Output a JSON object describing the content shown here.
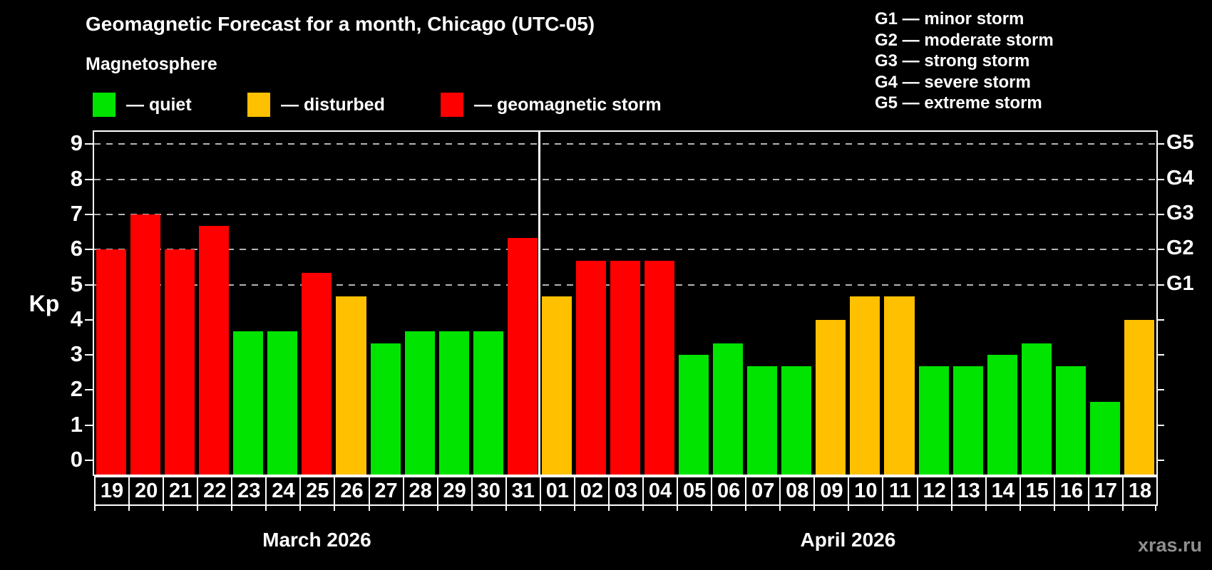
{
  "title": "Geomagnetic Forecast for a month, Chicago (UTC-05)",
  "legend": {
    "heading": "Magnetosphere",
    "items": [
      {
        "label": "— quiet",
        "status": "quiet",
        "color": "#00e400"
      },
      {
        "label": "— disturbed",
        "status": "disturbed",
        "color": "#ffc000"
      },
      {
        "label": "— geomagnetic storm",
        "status": "storm",
        "color": "#ff0000"
      }
    ]
  },
  "g_legend": {
    "items": [
      {
        "label": "G1 — minor storm"
      },
      {
        "label": "G2 — moderate storm"
      },
      {
        "label": "G3 — strong storm"
      },
      {
        "label": "G4 — severe storm"
      },
      {
        "label": "G5 — extreme storm"
      }
    ]
  },
  "axis": {
    "kp_label": "Kp",
    "left_ticks": [
      0,
      1,
      2,
      3,
      4,
      5,
      6,
      7,
      8,
      9
    ],
    "gridline_color": "#b4b4b4"
  },
  "watermark": "xras.ru",
  "chart_data": {
    "type": "bar",
    "title": "Geomagnetic Forecast for a month, Chicago (UTC-05)",
    "ylabel": "Kp",
    "ylim": [
      0,
      9
    ],
    "grid": "dashed horizontal at Kp 5-9",
    "gridlines_kp": [
      5,
      6,
      7,
      8,
      9
    ],
    "g_scale": [
      {
        "label": "G1",
        "kp": 5
      },
      {
        "label": "G2",
        "kp": 6
      },
      {
        "label": "G3",
        "kp": 7
      },
      {
        "label": "G4",
        "kp": 8
      },
      {
        "label": "G5",
        "kp": 9
      }
    ],
    "status_colors": {
      "quiet": "#00e400",
      "disturbed": "#ffc000",
      "storm": "#ff0000"
    },
    "months": [
      {
        "name": "March 2026",
        "days": [
          {
            "date": "19",
            "kp": 6.0,
            "status": "storm"
          },
          {
            "date": "20",
            "kp": 7.0,
            "status": "storm"
          },
          {
            "date": "21",
            "kp": 6.0,
            "status": "storm"
          },
          {
            "date": "22",
            "kp": 6.67,
            "status": "storm"
          },
          {
            "date": "23",
            "kp": 3.67,
            "status": "quiet"
          },
          {
            "date": "24",
            "kp": 3.67,
            "status": "quiet"
          },
          {
            "date": "25",
            "kp": 5.33,
            "status": "storm"
          },
          {
            "date": "26",
            "kp": 4.67,
            "status": "disturbed"
          },
          {
            "date": "27",
            "kp": 3.33,
            "status": "quiet"
          },
          {
            "date": "28",
            "kp": 3.67,
            "status": "quiet"
          },
          {
            "date": "29",
            "kp": 3.67,
            "status": "quiet"
          },
          {
            "date": "30",
            "kp": 3.67,
            "status": "quiet"
          },
          {
            "date": "31",
            "kp": 6.33,
            "status": "storm"
          }
        ]
      },
      {
        "name": "April 2026",
        "days": [
          {
            "date": "01",
            "kp": 4.67,
            "status": "disturbed"
          },
          {
            "date": "02",
            "kp": 5.67,
            "status": "storm"
          },
          {
            "date": "03",
            "kp": 5.67,
            "status": "storm"
          },
          {
            "date": "04",
            "kp": 5.67,
            "status": "storm"
          },
          {
            "date": "05",
            "kp": 3.0,
            "status": "quiet"
          },
          {
            "date": "06",
            "kp": 3.33,
            "status": "quiet"
          },
          {
            "date": "07",
            "kp": 2.67,
            "status": "quiet"
          },
          {
            "date": "08",
            "kp": 2.67,
            "status": "quiet"
          },
          {
            "date": "09",
            "kp": 4.0,
            "status": "disturbed"
          },
          {
            "date": "10",
            "kp": 4.67,
            "status": "disturbed"
          },
          {
            "date": "11",
            "kp": 4.67,
            "status": "disturbed"
          },
          {
            "date": "12",
            "kp": 2.67,
            "status": "quiet"
          },
          {
            "date": "13",
            "kp": 2.67,
            "status": "quiet"
          },
          {
            "date": "14",
            "kp": 3.0,
            "status": "quiet"
          },
          {
            "date": "15",
            "kp": 3.33,
            "status": "quiet"
          },
          {
            "date": "16",
            "kp": 2.67,
            "status": "quiet"
          },
          {
            "date": "17",
            "kp": 1.67,
            "status": "quiet"
          },
          {
            "date": "18",
            "kp": 4.0,
            "status": "disturbed"
          }
        ]
      }
    ]
  }
}
